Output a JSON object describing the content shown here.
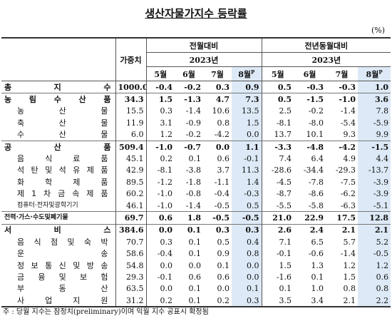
{
  "header": {
    "title": "생산자물가지수 등락률",
    "unit": "(%)"
  },
  "table": {
    "weight_header": "가중치",
    "mom_header": "전월대비",
    "yoy_header": "전년동월대비",
    "year": "2023년",
    "months": [
      "5월",
      "6월",
      "7월",
      "8월"
    ],
    "prelim_mark": "P",
    "bold_rows": [
      0,
      1,
      5,
      11,
      12
    ],
    "sub_rows": [
      2,
      3,
      4,
      6,
      7,
      8,
      9,
      10,
      13,
      14,
      15,
      16,
      17,
      18
    ],
    "rows": [
      [
        "총 지 수",
        "1000.0",
        "-0.4",
        "-0.2",
        "0.3",
        "0.9",
        "0.5",
        "-0.3",
        "-0.3",
        "1.0"
      ],
      [
        "농 림 수 산 품",
        "34.3",
        "1.5",
        "-1.3",
        "4.7",
        "7.3",
        "0.5",
        "-1.5",
        "-1.0",
        "3.6"
      ],
      [
        "농 산 물",
        "15.5",
        "0.3",
        "-1.4",
        "10.6",
        "13.5",
        "2.5",
        "-0.2",
        "-1.4",
        "7.8"
      ],
      [
        "축 산 물",
        "11.9",
        "3.1",
        "-0.9",
        "0.8",
        "1.5",
        "-8.1",
        "-8.0",
        "-5.4",
        "-5.9"
      ],
      [
        "수 산 물",
        "6.0",
        "1.2",
        "-0.2",
        "-4.2",
        "0.0",
        "13.7",
        "10.1",
        "9.3",
        "9.9"
      ],
      [
        "공 산 품",
        "509.4",
        "-1.0",
        "-0.7",
        "0.0",
        "1.1",
        "-3.3",
        "-4.8",
        "-4.2",
        "-1.5"
      ],
      [
        "음 식 료 품",
        "45.1",
        "0.2",
        "0.1",
        "0.6",
        "-0.1",
        "7.4",
        "6.4",
        "4.9",
        "4.4"
      ],
      [
        "석 탄 및 석 유 제 품",
        "42.9",
        "-8.1",
        "-3.8",
        "3.7",
        "11.3",
        "-28.6",
        "-34.4",
        "-29.3",
        "-13.7"
      ],
      [
        "화 학 제 품",
        "89.5",
        "-1.2",
        "-1.8",
        "-1.1",
        "1.4",
        "-4.5",
        "-7.8",
        "-7.5",
        "-3.9"
      ],
      [
        "제 1 차 금 속 제 품",
        "60.2",
        "-1.0",
        "-0.8",
        "-0.4",
        "-0.3",
        "-8.7",
        "-8.6",
        "-6.2",
        "-3.9"
      ],
      [
        "컴퓨터·전자및광학기기",
        "46.1",
        "-1.0",
        "-1.4",
        "-0.5",
        "0.5",
        "-5.5",
        "-5.8",
        "-6.3",
        "-5.1"
      ],
      [
        "전력·가스·수도및폐기물",
        "69.7",
        "0.6",
        "1.8",
        "-0.5",
        "-0.5",
        "21.0",
        "22.9",
        "17.5",
        "12.8"
      ],
      [
        "서 비 스",
        "384.6",
        "0.0",
        "0.1",
        "0.3",
        "0.3",
        "2.6",
        "2.4",
        "2.1",
        "2.1"
      ],
      [
        "음 식 점 및 숙 박",
        "70.7",
        "0.3",
        "0.1",
        "0.5",
        "0.4",
        "7.1",
        "6.5",
        "5.7",
        "5.2"
      ],
      [
        "운 송",
        "58.6",
        "-0.4",
        "0.1",
        "0.9",
        "0.8",
        "-0.1",
        "-0.6",
        "-1.4",
        "-0.5"
      ],
      [
        "정 보 통 신 및 방 송",
        "54.8",
        "0.0",
        "0.0",
        "0.1",
        "0.0",
        "1.5",
        "1.3",
        "1.2",
        "1.2"
      ],
      [
        "금 융 및 보 험",
        "29.3",
        "-0.1",
        "0.6",
        "0.6",
        "0.0",
        "-1.6",
        "0.1",
        "1.5",
        "0.6"
      ],
      [
        "부 동 산",
        "63.5",
        "0.0",
        "0.1",
        "0.0",
        "0.1",
        "0.1",
        "1.0",
        "0.8",
        "0.8"
      ],
      [
        "사 업 지 원",
        "31.2",
        "0.2",
        "0.1",
        "0.2",
        "0.3",
        "3.5",
        "3.4",
        "2.1",
        "2.2"
      ]
    ]
  },
  "footnote": "주 : 당월 지수는 잠정치(preliminary)이며 익월 지수 공표시 확정됨"
}
